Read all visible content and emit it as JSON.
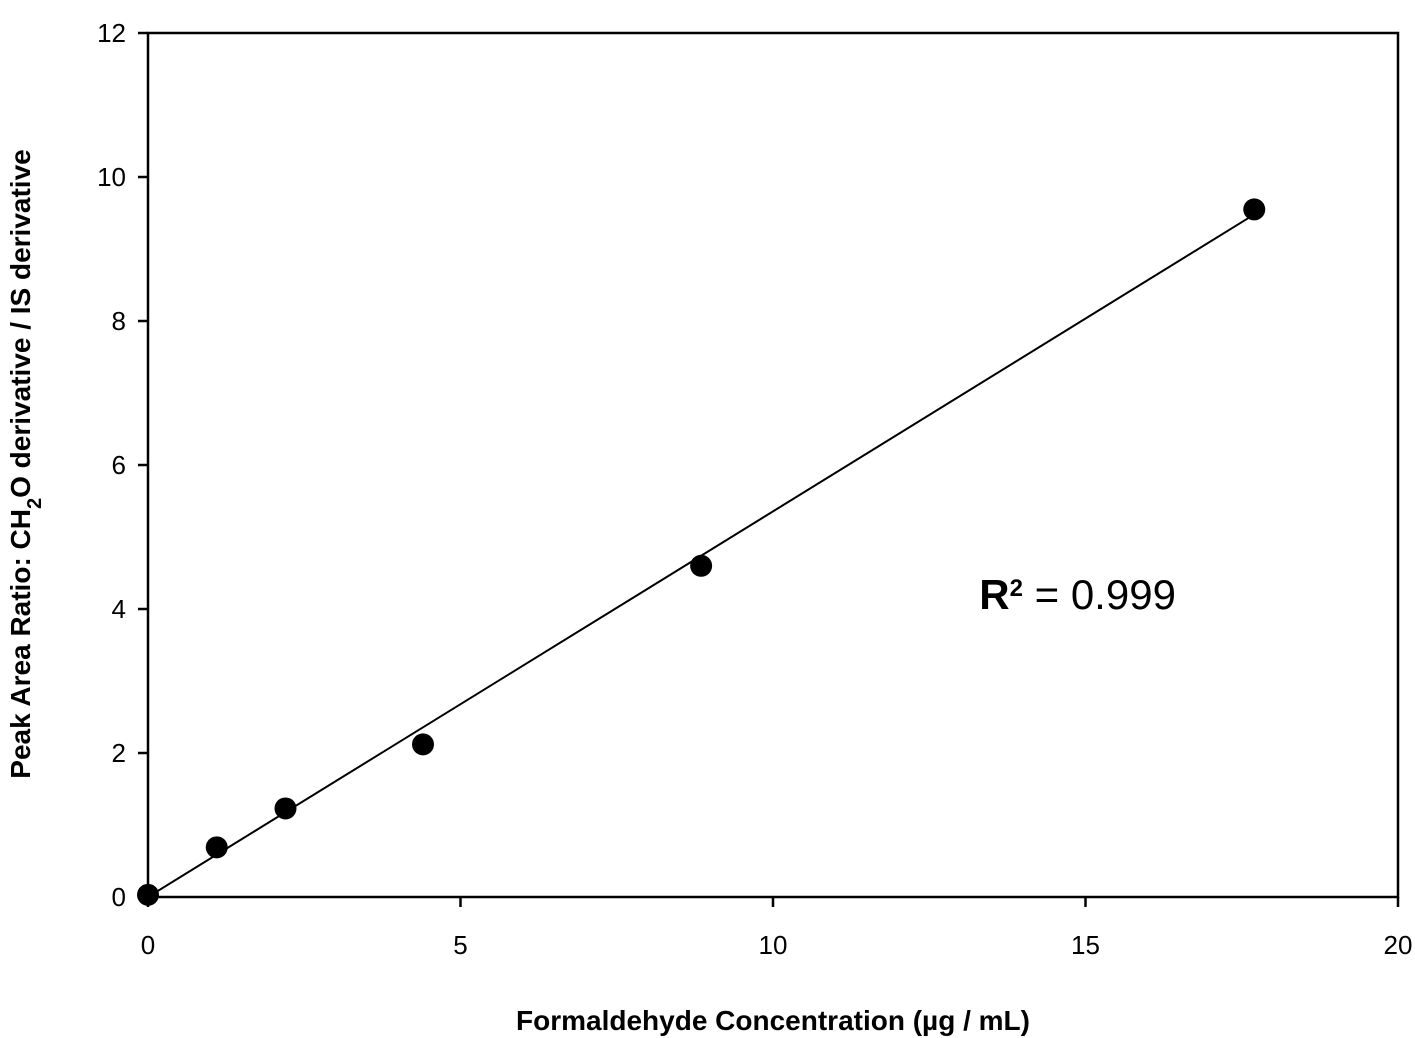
{
  "chart_data": {
    "type": "scatter",
    "title": "",
    "xlabel": "Formaldehyde Concentration (µg / mL)",
    "ylabel": {
      "parts": [
        {
          "text": "Peak Area Ratio: CH",
          "sub": false
        },
        {
          "text": "2",
          "sub": true
        },
        {
          "text": "O derivative / IS derivative",
          "sub": false
        }
      ]
    },
    "xlim": [
      0,
      20
    ],
    "ylim": [
      0,
      12
    ],
    "xticks": [
      0,
      5,
      10,
      15,
      20
    ],
    "yticks": [
      0,
      2,
      4,
      6,
      8,
      10,
      12
    ],
    "grid": false,
    "legend": "none",
    "series": [
      {
        "points": [
          {
            "x": 0,
            "y": 0.03
          },
          {
            "x": 1.1,
            "y": 0.69
          },
          {
            "x": 2.2,
            "y": 1.23
          },
          {
            "x": 4.4,
            "y": 2.12
          },
          {
            "x": 8.85,
            "y": 4.6
          },
          {
            "x": 17.7,
            "y": 9.55
          }
        ],
        "marker": "filled-circle",
        "color": "#000000"
      }
    ],
    "fit_line": {
      "x": [
        0,
        17.7
      ],
      "y": [
        0,
        9.48
      ],
      "color": "#000000"
    },
    "annotations": [
      {
        "label": "R",
        "sup": "2",
        "rest": " = 0.999",
        "x": 13.3,
        "y": 4.0
      }
    ]
  }
}
